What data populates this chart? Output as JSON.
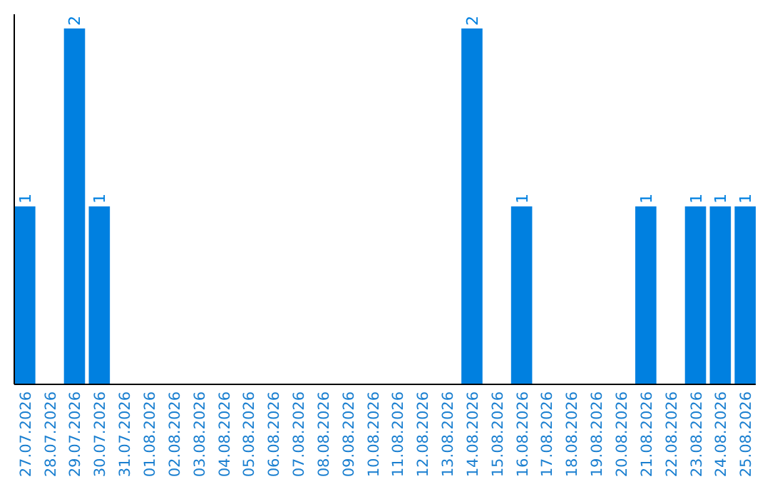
{
  "chart_data": {
    "type": "bar",
    "categories": [
      "27.07.2026",
      "28.07.2026",
      "29.07.2026",
      "30.07.2026",
      "31.07.2026",
      "01.08.2026",
      "02.08.2026",
      "03.08.2026",
      "04.08.2026",
      "05.08.2026",
      "06.08.2026",
      "07.08.2026",
      "08.08.2026",
      "09.08.2026",
      "10.08.2026",
      "11.08.2026",
      "12.08.2026",
      "13.08.2026",
      "14.08.2026",
      "15.08.2026",
      "16.08.2026",
      "17.08.2026",
      "18.08.2026",
      "19.08.2026",
      "20.08.2026",
      "21.08.2026",
      "22.08.2026",
      "23.08.2026",
      "24.08.2026",
      "25.08.2026"
    ],
    "values": [
      1,
      0,
      2,
      1,
      0,
      0,
      0,
      0,
      0,
      0,
      0,
      0,
      0,
      0,
      0,
      0,
      0,
      0,
      2,
      0,
      1,
      0,
      0,
      0,
      0,
      1,
      0,
      1,
      1,
      1
    ],
    "value_labels": [
      "1",
      null,
      "2",
      "1",
      null,
      null,
      null,
      null,
      null,
      null,
      null,
      null,
      null,
      null,
      null,
      null,
      null,
      null,
      "2",
      null,
      "1",
      null,
      null,
      null,
      null,
      "1",
      null,
      "1",
      "1",
      "1"
    ],
    "color": "#0080e0"
  }
}
